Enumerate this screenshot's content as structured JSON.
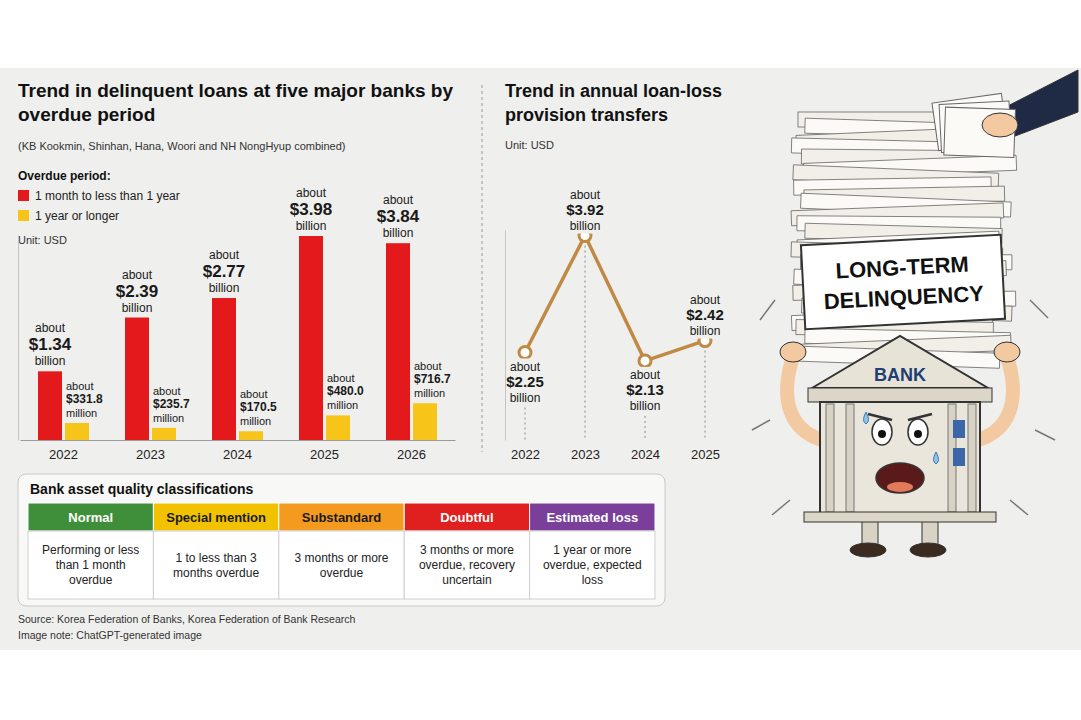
{
  "chart_data": [
    {
      "type": "bar",
      "title": "Trend in delinquent loans at five major banks by overdue period",
      "subtitle": "(KB Kookmin, Shinhan, Hana, Woori and NH NongHyup combined)",
      "legend_title": "Overdue period:",
      "unit": "Unit: USD",
      "categories": [
        "2022",
        "2023",
        "2024",
        "2025",
        "2026"
      ],
      "series": [
        {
          "name": "1 month to less than 1 year",
          "color": "#e3191c",
          "values": [
            1340000000,
            2390000000,
            2770000000,
            3980000000,
            3840000000
          ],
          "value_labels": [
            "about $1.34 billion",
            "about $2.39 billion",
            "about $2.77 billion",
            "about $3.98 billion",
            "about $3.84 billion"
          ]
        },
        {
          "name": "1 year or longer",
          "color": "#f7c41a",
          "values": [
            331800000,
            235700000,
            170500000,
            480000000,
            716700000
          ],
          "value_labels": [
            "about $331.8 million",
            "about $235.7 million",
            "about $170.5 million",
            "about $480.0 million",
            "about $716.7 million"
          ]
        }
      ],
      "ylim": [
        0,
        4000000000
      ],
      "yticks": [],
      "tick_labels": "x",
      "data_labels": true,
      "legend": "top-left",
      "grid": false
    },
    {
      "type": "line",
      "title": "Trend in annual loan-loss provision transfers",
      "unit": "Unit: USD",
      "categories": [
        "2022",
        "2023",
        "2024",
        "2025"
      ],
      "values": [
        2250000000,
        3920000000,
        2130000000,
        2420000000
      ],
      "value_labels": [
        "about $2.25 billion",
        "about $3.92 billion",
        "about $2.13 billion",
        "about $2.42 billion"
      ],
      "color": "#c08a45",
      "marker": "circle",
      "line_style": "solid",
      "ylim": [
        1000000000,
        4000000000
      ],
      "yticks": [],
      "tick_labels": "x",
      "data_labels": true,
      "grid": false
    }
  ],
  "classification_table": {
    "title": "Bank asset quality classifications",
    "columns": [
      {
        "label": "Normal",
        "color": "#3f8f3a",
        "description": "Performing or less than 1 month overdue"
      },
      {
        "label": "Special mention",
        "color": "#f2c200",
        "description": "1 to less than 3 months overdue"
      },
      {
        "label": "Substandard",
        "color": "#f39a1f",
        "description": "3 months or more overdue"
      },
      {
        "label": "Doubtful",
        "color": "#e0201e",
        "description": "3 months or more overdue, recovery uncertain"
      },
      {
        "label": "Estimated loss",
        "color": "#7a3f9a",
        "description": "1 year or more overdue, expected loss"
      }
    ]
  },
  "illustration": {
    "sign_text": "LONG-TERM DELINQUENCY",
    "building_label": "BANK"
  },
  "source": "Source: Korea Federation of Banks, Korea Federation of Bank Research",
  "image_note": "Image note: ChatGPT-generated image"
}
